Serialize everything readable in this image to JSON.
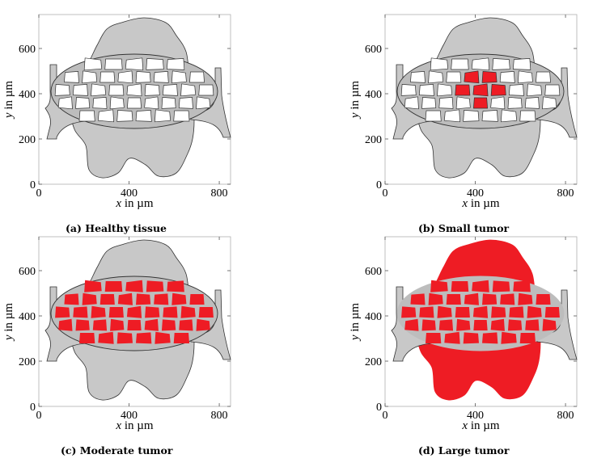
{
  "axes": {
    "x_ticks": [
      "0",
      "400",
      "800"
    ],
    "y_ticks": [
      "0",
      "200",
      "400",
      "600"
    ],
    "x_label_var": "x",
    "x_label_unit": " in µm",
    "y_label_var": "y",
    "y_label_unit": " in µm",
    "xlim": [
      0,
      850
    ],
    "ylim": [
      0,
      750
    ]
  },
  "colors": {
    "tissue": "#c8c8c8",
    "vessel_wall": "#bdbdbd",
    "tumor": "#ee1c24",
    "outline": "#333333"
  },
  "panels": [
    {
      "caption": "(a) Healthy tissue",
      "tumor": "none"
    },
    {
      "caption": "(b) Small tumor",
      "tumor": "small"
    },
    {
      "caption": "(c) Moderate tumor",
      "tumor": "moderate"
    },
    {
      "caption": "(d) Large tumor",
      "tumor": "large"
    }
  ]
}
